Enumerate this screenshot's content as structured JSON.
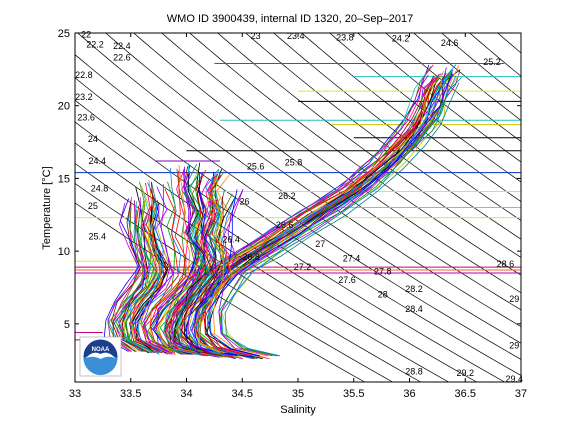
{
  "chart_data": {
    "type": "line",
    "title": "WMO ID 3900439, internal ID 1320, 20–Sep–2017",
    "xlabel": "Salinity",
    "ylabel": "Temperature [°C]",
    "xlim": [
      33,
      37
    ],
    "ylim": [
      1,
      25
    ],
    "xticks": [
      "33",
      "33.5",
      "34",
      "34.5",
      "35",
      "35.5",
      "36",
      "36.5",
      "37"
    ],
    "yticks": [
      "5",
      "10",
      "15",
      "20",
      "25"
    ],
    "grid": false,
    "logo_text": "NOAA",
    "density_contour_labels": [
      {
        "label": "22",
        "s": 33.1,
        "t": 24.7
      },
      {
        "label": "22.2",
        "s": 33.18,
        "t": 24.0
      },
      {
        "label": "22.4",
        "s": 33.42,
        "t": 23.9
      },
      {
        "label": "22.6",
        "s": 33.42,
        "t": 23.1
      },
      {
        "label": "22.8",
        "s": 33.08,
        "t": 21.9
      },
      {
        "label": "23.2",
        "s": 33.08,
        "t": 20.4
      },
      {
        "label": "23.6",
        "s": 33.1,
        "t": 19.0
      },
      {
        "label": "24",
        "s": 33.16,
        "t": 17.5
      },
      {
        "label": "24.4",
        "s": 33.2,
        "t": 16.0
      },
      {
        "label": "24.8",
        "s": 33.22,
        "t": 14.1
      },
      {
        "label": "25",
        "s": 33.16,
        "t": 12.9
      },
      {
        "label": "25.4",
        "s": 33.2,
        "t": 10.8
      },
      {
        "label": "23",
        "s": 34.62,
        "t": 24.6
      },
      {
        "label": "23.4",
        "s": 34.98,
        "t": 24.6
      },
      {
        "label": "23.8",
        "s": 35.42,
        "t": 24.5
      },
      {
        "label": "24.2",
        "s": 35.92,
        "t": 24.4
      },
      {
        "label": "24.6",
        "s": 36.36,
        "t": 24.1
      },
      {
        "label": "25.2",
        "s": 36.74,
        "t": 22.8
      },
      {
        "label": "25.6",
        "s": 34.62,
        "t": 15.6
      },
      {
        "label": "25.8",
        "s": 34.96,
        "t": 15.9
      },
      {
        "label": "26",
        "s": 34.52,
        "t": 13.2
      },
      {
        "label": "26.2",
        "s": 34.9,
        "t": 13.6
      },
      {
        "label": "26.4",
        "s": 34.4,
        "t": 10.6
      },
      {
        "label": "26.6",
        "s": 34.88,
        "t": 11.6
      },
      {
        "label": "26.8",
        "s": 34.58,
        "t": 9.4
      },
      {
        "label": "27",
        "s": 35.2,
        "t": 10.3
      },
      {
        "label": "27.2",
        "s": 35.04,
        "t": 8.7
      },
      {
        "label": "27.4",
        "s": 35.48,
        "t": 9.3
      },
      {
        "label": "27.6",
        "s": 35.44,
        "t": 7.8
      },
      {
        "label": "27.8",
        "s": 35.76,
        "t": 8.4
      },
      {
        "label": "28",
        "s": 35.76,
        "t": 6.8
      },
      {
        "label": "28.2",
        "s": 36.04,
        "t": 7.2
      },
      {
        "label": "28.4",
        "s": 36.04,
        "t": 5.8
      },
      {
        "label": "28.6",
        "s": 36.86,
        "t": 8.9
      },
      {
        "label": "28.8",
        "s": 36.04,
        "t": 1.5
      },
      {
        "label": "29",
        "s": 36.94,
        "t": 6.5
      },
      {
        "label": "29",
        "s": 36.94,
        "t": 3.3
      },
      {
        "label": "29.2",
        "s": 36.5,
        "t": 1.4
      },
      {
        "label": "29.4",
        "s": 36.94,
        "t": 1.0
      }
    ],
    "series": [
      {
        "values": [
          [
            34.6,
            2.6
          ],
          [
            34.2,
            3.4
          ],
          [
            34.08,
            4.5
          ],
          [
            34.1,
            6.0
          ],
          [
            34.2,
            7.5
          ],
          [
            34.35,
            8.6
          ],
          [
            34.6,
            9.9
          ],
          [
            34.9,
            11.4
          ],
          [
            35.2,
            12.8
          ],
          [
            35.5,
            14.3
          ],
          [
            35.75,
            15.8
          ],
          [
            35.95,
            17.3
          ],
          [
            36.1,
            18.8
          ],
          [
            36.2,
            20.2
          ],
          [
            36.25,
            21.5
          ],
          [
            36.35,
            22.5
          ]
        ]
      },
      {
        "values": [
          [
            34.7,
            2.8
          ],
          [
            34.4,
            3.3
          ],
          [
            34.22,
            4.3
          ],
          [
            34.22,
            5.8
          ],
          [
            34.3,
            7.2
          ],
          [
            34.45,
            8.5
          ],
          [
            34.7,
            9.8
          ],
          [
            35.0,
            11.2
          ],
          [
            35.3,
            12.7
          ],
          [
            35.6,
            14.3
          ],
          [
            35.8,
            15.9
          ],
          [
            36.0,
            17.5
          ],
          [
            36.15,
            19.0
          ],
          [
            36.22,
            20.6
          ],
          [
            36.3,
            21.9
          ]
        ]
      },
      {
        "values": [
          [
            34.45,
            2.7
          ],
          [
            34.15,
            3.1
          ],
          [
            34.0,
            4.2
          ],
          [
            34.0,
            5.6
          ],
          [
            34.08,
            7.0
          ],
          [
            34.2,
            8.2
          ],
          [
            34.45,
            9.5
          ],
          [
            34.78,
            11.0
          ],
          [
            35.1,
            12.6
          ],
          [
            35.45,
            14.2
          ],
          [
            35.7,
            15.7
          ],
          [
            35.9,
            17.0
          ],
          [
            36.05,
            18.4
          ],
          [
            36.15,
            19.8
          ],
          [
            36.2,
            21.1
          ],
          [
            36.3,
            22.1
          ]
        ]
      },
      {
        "values": [
          [
            33.9,
            2.9
          ],
          [
            33.72,
            3.6
          ],
          [
            33.66,
            4.8
          ],
          [
            33.74,
            6.0
          ],
          [
            33.88,
            7.2
          ],
          [
            34.0,
            8.3
          ],
          [
            34.05,
            9.8
          ],
          [
            34.0,
            11.2
          ],
          [
            34.02,
            12.8
          ],
          [
            33.96,
            14.4
          ],
          [
            33.98,
            15.8
          ]
        ]
      },
      {
        "values": [
          [
            33.8,
            3.0
          ],
          [
            33.56,
            3.8
          ],
          [
            33.52,
            5.0
          ],
          [
            33.6,
            6.3
          ],
          [
            33.72,
            7.4
          ],
          [
            33.8,
            8.5
          ],
          [
            33.78,
            10.0
          ],
          [
            33.72,
            11.6
          ],
          [
            33.76,
            13.0
          ],
          [
            33.7,
            14.6
          ]
        ]
      },
      {
        "values": [
          [
            34.1,
            2.9
          ],
          [
            33.88,
            3.5
          ],
          [
            33.82,
            4.6
          ],
          [
            33.9,
            5.9
          ],
          [
            34.02,
            7.1
          ],
          [
            34.12,
            8.3
          ],
          [
            34.2,
            9.5
          ],
          [
            34.18,
            11.0
          ],
          [
            34.25,
            12.5
          ],
          [
            34.2,
            14.2
          ],
          [
            34.26,
            15.4
          ]
        ]
      },
      {
        "values": [
          [
            34.3,
            2.8
          ],
          [
            34.0,
            3.3
          ],
          [
            33.9,
            4.4
          ],
          [
            33.96,
            5.7
          ],
          [
            34.08,
            6.9
          ],
          [
            34.2,
            8.1
          ],
          [
            34.28,
            9.4
          ],
          [
            34.24,
            10.9
          ],
          [
            34.3,
            12.3
          ],
          [
            34.36,
            13.9
          ]
        ]
      },
      {
        "values": [
          [
            33.6,
            3.1
          ],
          [
            33.42,
            4.0
          ],
          [
            33.4,
            5.2
          ],
          [
            33.5,
            6.5
          ],
          [
            33.62,
            7.6
          ],
          [
            33.68,
            8.8
          ],
          [
            33.62,
            10.4
          ],
          [
            33.56,
            11.9
          ],
          [
            33.6,
            13.4
          ]
        ]
      },
      {
        "values": [
          [
            34.2,
            3.0
          ],
          [
            34.02,
            3.7
          ],
          [
            33.98,
            4.8
          ],
          [
            34.06,
            6.1
          ],
          [
            34.16,
            7.3
          ],
          [
            34.26,
            8.4
          ],
          [
            34.24,
            9.7
          ],
          [
            34.12,
            11.1
          ],
          [
            34.18,
            12.6
          ],
          [
            34.1,
            14.0
          ],
          [
            34.16,
            15.2
          ]
        ]
      },
      {
        "values": [
          [
            33.7,
            3.1
          ],
          [
            33.5,
            3.9
          ],
          [
            33.46,
            5.1
          ],
          [
            33.54,
            6.4
          ],
          [
            33.66,
            7.6
          ],
          [
            33.72,
            8.7
          ],
          [
            33.66,
            10.2
          ],
          [
            33.6,
            11.7
          ],
          [
            33.62,
            13.2
          ]
        ]
      }
    ],
    "horizontal_lines": [
      {
        "t": 22.9,
        "s0": 34.25,
        "s1": 36.85,
        "color": "#e02020"
      },
      {
        "t": 22.0,
        "s0": 35.5,
        "s1": 37.0,
        "color": "#20c0c0"
      },
      {
        "t": 21.0,
        "s0": 35.0,
        "s1": 37.0,
        "color": "#e8e040"
      },
      {
        "t": 20.3,
        "s0": 35.0,
        "s1": 37.0,
        "color": "#000000"
      },
      {
        "t": 19.0,
        "s0": 34.3,
        "s1": 37.0,
        "color": "#20c0c0"
      },
      {
        "t": 18.7,
        "s0": 35.3,
        "s1": 37.0,
        "color": "#d0c000"
      },
      {
        "t": 17.8,
        "s0": 35.5,
        "s1": 37.0,
        "color": "#000000"
      },
      {
        "t": 16.9,
        "s0": 34.0,
        "s1": 37.0,
        "color": "#000000"
      },
      {
        "t": 15.4,
        "s0": 33.0,
        "s1": 37.0,
        "color": "#0030c0"
      },
      {
        "t": 16.2,
        "s0": 33.72,
        "s1": 34.3,
        "color": "#8000c0"
      },
      {
        "t": 14.1,
        "s0": 34.1,
        "s1": 37.0,
        "color": "#e8e040"
      },
      {
        "t": 13.0,
        "s0": 35.2,
        "s1": 37.0,
        "color": "#d0c000"
      },
      {
        "t": 12.3,
        "s0": 33.0,
        "s1": 37.0,
        "color": "#e8e040"
      },
      {
        "t": 9.3,
        "s0": 33.0,
        "s1": 34.8,
        "color": "#e8e040"
      },
      {
        "t": 8.9,
        "s0": 33.0,
        "s1": 37.0,
        "color": "#c00080"
      },
      {
        "t": 8.7,
        "s0": 33.0,
        "s1": 37.0,
        "color": "#ff6020"
      },
      {
        "t": 8.5,
        "s0": 33.0,
        "s1": 37.0,
        "color": "#b000b0"
      },
      {
        "t": 3.9,
        "s0": 33.0,
        "s1": 33.25,
        "color": "#c00080"
      },
      {
        "t": 4.4,
        "s0": 33.0,
        "s1": 33.25,
        "color": "#c00080"
      }
    ]
  }
}
